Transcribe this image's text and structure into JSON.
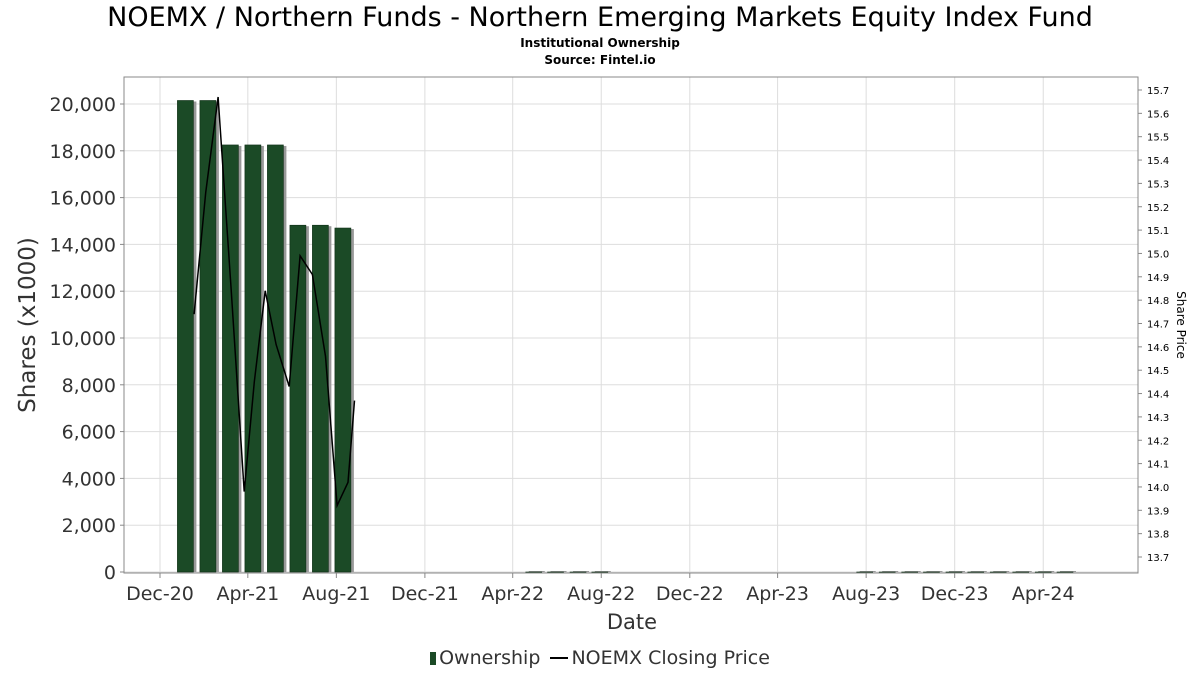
{
  "chart_data": {
    "type": "bar",
    "title": "NOEMX / Northern Funds - Northern Emerging Markets Equity Index Fund",
    "subtitle": "Institutional Ownership",
    "source": "Source: Fintel.io",
    "xlabel": "Date",
    "ylabel": "Shares (x1000)",
    "y2label": "Share Price",
    "x_tick_labels": [
      "Dec-20",
      "Apr-21",
      "Aug-21",
      "Dec-21",
      "Apr-22",
      "Aug-22",
      "Dec-22",
      "Apr-23",
      "Aug-23",
      "Dec-23",
      "Apr-24"
    ],
    "y_tick_labels": [
      "0",
      "2,000",
      "4,000",
      "6,000",
      "8,000",
      "10,000",
      "12,000",
      "14,000",
      "16,000",
      "18,000",
      "20,000"
    ],
    "y2_tick_labels": [
      "13.7",
      "13.8",
      "13.9",
      "14.0",
      "14.1",
      "14.2",
      "14.3",
      "14.4",
      "14.5",
      "14.6",
      "14.7",
      "14.8",
      "14.9",
      "15.0",
      "15.1",
      "15.2",
      "15.3",
      "15.4",
      "15.5",
      "15.6",
      "15.7"
    ],
    "ylim": [
      0,
      21000
    ],
    "y2lim": [
      13.64,
      15.74
    ],
    "grid": true,
    "legend_position": "bottom",
    "colors": {
      "bars": "#1b4a26",
      "bar_shadow": "#999999",
      "line": "#000000",
      "grid": "#dddddd"
    },
    "series": [
      {
        "name": "Ownership",
        "kind": "bar",
        "points": [
          {
            "x": "2021-01-05",
            "y": 20150
          },
          {
            "x": "2021-02-05",
            "y": 20150
          },
          {
            "x": "2021-03-08",
            "y": 18250
          },
          {
            "x": "2021-04-08",
            "y": 18250
          },
          {
            "x": "2021-05-09",
            "y": 18250
          },
          {
            "x": "2021-06-09",
            "y": 14820
          },
          {
            "x": "2021-07-10",
            "y": 14820
          },
          {
            "x": "2021-08-10",
            "y": 14700
          },
          {
            "x": "2022-04-30",
            "y": 0
          },
          {
            "x": "2022-05-30",
            "y": 0
          },
          {
            "x": "2022-06-30",
            "y": 0
          },
          {
            "x": "2022-07-30",
            "y": 0
          },
          {
            "x": "2023-07-30",
            "y": 0
          },
          {
            "x": "2023-08-30",
            "y": 0
          },
          {
            "x": "2023-09-30",
            "y": 0
          },
          {
            "x": "2023-10-30",
            "y": 0
          },
          {
            "x": "2023-11-30",
            "y": 0
          },
          {
            "x": "2023-12-30",
            "y": 0
          },
          {
            "x": "2024-01-30",
            "y": 0
          },
          {
            "x": "2024-03-01",
            "y": 0
          },
          {
            "x": "2024-04-01",
            "y": 0
          },
          {
            "x": "2024-05-01",
            "y": 0
          }
        ]
      },
      {
        "name": "NOEMX Closing Price",
        "kind": "line",
        "points": [
          {
            "x": "2021-01-17",
            "y": 14.74
          },
          {
            "x": "2021-02-02",
            "y": 15.26
          },
          {
            "x": "2021-02-19",
            "y": 15.67
          },
          {
            "x": "2021-03-09",
            "y": 14.85
          },
          {
            "x": "2021-03-27",
            "y": 13.98
          },
          {
            "x": "2021-04-10",
            "y": 14.45
          },
          {
            "x": "2021-04-25",
            "y": 14.84
          },
          {
            "x": "2021-05-10",
            "y": 14.61
          },
          {
            "x": "2021-05-28",
            "y": 14.43
          },
          {
            "x": "2021-06-12",
            "y": 14.99
          },
          {
            "x": "2021-06-29",
            "y": 14.91
          },
          {
            "x": "2021-07-17",
            "y": 14.56
          },
          {
            "x": "2021-08-02",
            "y": 13.92
          },
          {
            "x": "2021-08-17",
            "y": 14.02
          },
          {
            "x": "2021-08-26",
            "y": 14.37
          }
        ]
      }
    ]
  },
  "legend": {
    "ownership_label": "Ownership",
    "price_label": "NOEMX Closing Price"
  }
}
